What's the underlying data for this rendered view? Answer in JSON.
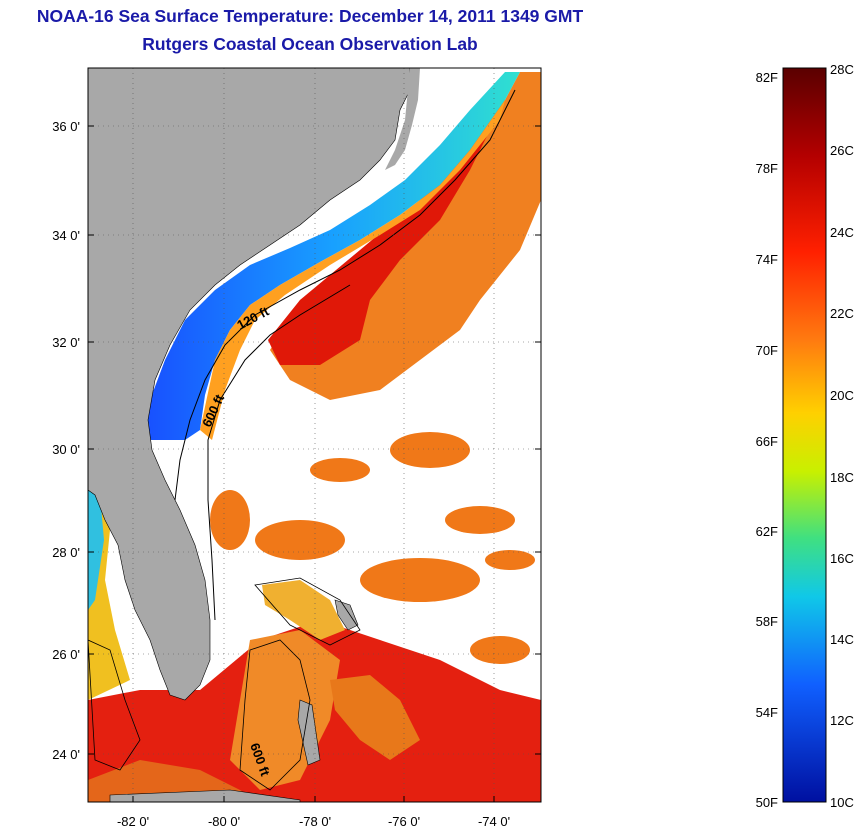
{
  "header": {
    "title": "NOAA-16 Sea Surface Temperature:  December 14, 2011 1349 GMT",
    "subtitle": "Rutgers Coastal Ocean Observation Lab"
  },
  "map": {
    "lat_labels": [
      "36 0'",
      "34 0'",
      "32 0'",
      "30 0'",
      "28 0'",
      "26 0'",
      "24 0'"
    ],
    "lon_labels": [
      "-82 0'",
      "-80 0'",
      "-78 0'",
      "-76 0'",
      "-74 0'"
    ],
    "contours": {
      "c120": "120 ft",
      "c600": "600 ft",
      "c600b": "600 ft"
    },
    "colors": {
      "land": "#a8a8a8",
      "cloud": "#ffffff"
    }
  },
  "colorbar": {
    "fahrenheit": [
      "82F",
      "78F",
      "74F",
      "70F",
      "66F",
      "62F",
      "58F",
      "54F",
      "50F"
    ],
    "celsius": [
      "28C",
      "26C",
      "24C",
      "22C",
      "20C",
      "18C",
      "16C",
      "14C",
      "12C",
      "10C"
    ],
    "gradient": [
      "#5a0000",
      "#b40000",
      "#ff2000",
      "#ff7a10",
      "#ffd000",
      "#c8f000",
      "#40e080",
      "#10c8e8",
      "#1060ff",
      "#0010a0"
    ]
  }
}
